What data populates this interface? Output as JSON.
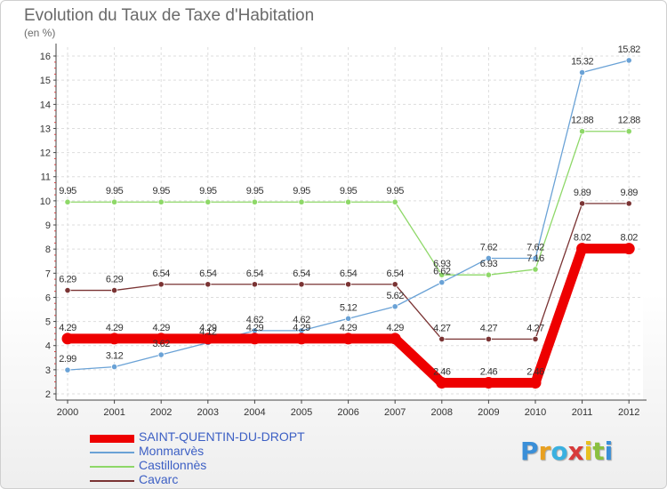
{
  "chart_data": {
    "type": "line",
    "title": "Evolution du Taux de Taxe d'Habitation",
    "subtitle": "(en %)",
    "x": [
      "2000",
      "2001",
      "2002",
      "2003",
      "2004",
      "2005",
      "2006",
      "2007",
      "2008",
      "2009",
      "2010",
      "2011",
      "2012"
    ],
    "ylim": [
      2,
      16
    ],
    "yticks": [
      "2",
      "3",
      "4",
      "5",
      "6",
      "7",
      "8",
      "9",
      "10",
      "11",
      "12",
      "13",
      "14",
      "15",
      "16"
    ],
    "series": [
      {
        "name": "SAINT-QUENTIN-DU-DROPT",
        "color": "#ee0000",
        "values": [
          4.29,
          4.29,
          4.29,
          4.29,
          4.29,
          4.29,
          4.29,
          4.29,
          2.46,
          2.46,
          2.46,
          8.02,
          8.02
        ],
        "labels": [
          "4.29",
          "4.29",
          "4.29",
          "4.29",
          "4.29",
          "4.29",
          "4.29",
          "4.29",
          "2.46",
          "2.46",
          "2.46",
          "8.02",
          "8.02"
        ]
      },
      {
        "name": "Monmarvès",
        "color": "#6aa2d6",
        "values": [
          2.99,
          3.12,
          3.62,
          4.12,
          4.62,
          4.62,
          5.12,
          5.62,
          6.62,
          7.62,
          7.62,
          15.32,
          15.82
        ],
        "labels": [
          "2.99",
          "3.12",
          "3.62",
          "4.12",
          "4.62",
          "4.62",
          "5.12",
          "5.62",
          "6.62",
          "7.62",
          "7.62",
          "15.32",
          "15.82"
        ]
      },
      {
        "name": "Castillonnès",
        "color": "#8ed868",
        "values": [
          9.95,
          9.95,
          9.95,
          9.95,
          9.95,
          9.95,
          9.95,
          9.95,
          6.93,
          6.93,
          7.16,
          12.88,
          12.88
        ],
        "labels": [
          "9.95",
          "9.95",
          "9.95",
          "9.95",
          "9.95",
          "9.95",
          "9.95",
          "9.95",
          "6.93",
          "6.93",
          "7.16",
          "12.88",
          "12.88"
        ]
      },
      {
        "name": "Cavarc",
        "color": "#7a3333",
        "values": [
          6.29,
          6.29,
          6.54,
          6.54,
          6.54,
          6.54,
          6.54,
          6.54,
          4.27,
          4.27,
          4.27,
          9.89,
          9.89
        ],
        "labels": [
          "6.29",
          "6.29",
          "6.54",
          "6.54",
          "6.54",
          "6.54",
          "6.54",
          "6.54",
          "4.27",
          "4.27",
          "4.27",
          "9.89",
          "9.89"
        ]
      }
    ]
  },
  "logo": {
    "text": "Proxiti",
    "letters": [
      "P",
      "r",
      "o",
      "x",
      "i",
      "t",
      "i"
    ],
    "colors": [
      "#3a8fd8",
      "#e8a020",
      "#3ab0e0",
      "#d83a3a",
      "#e8c020",
      "#8ac040",
      "#3a8fd8"
    ]
  }
}
